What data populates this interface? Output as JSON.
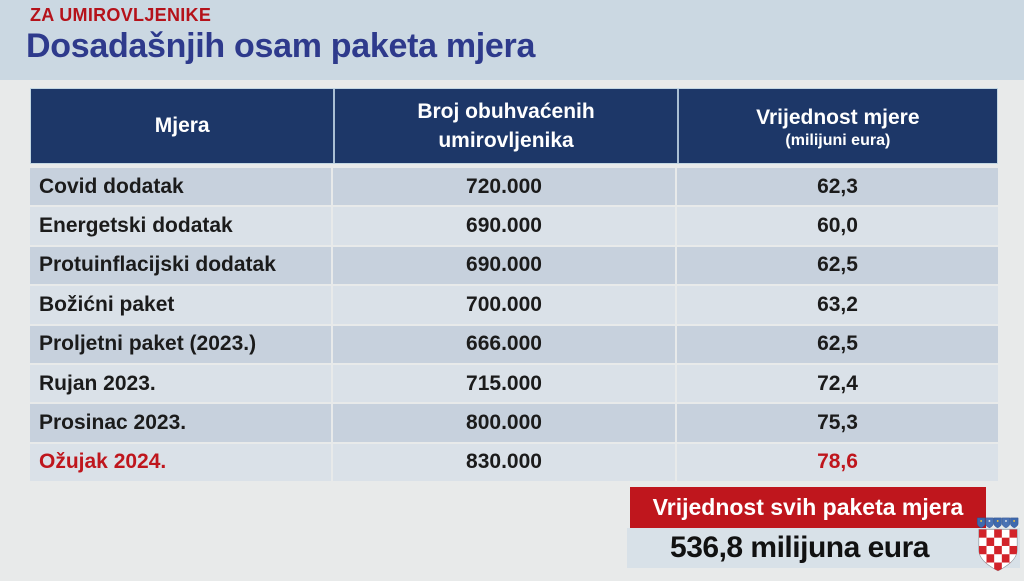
{
  "header": {
    "kicker": "ZA UMIROVLJENIKE",
    "title": "Dosadašnjih osam paketa mjera"
  },
  "table": {
    "header": {
      "mjera": "Mjera",
      "broj_line1": "Broj obuhvaćenih",
      "broj_line2": "umirovljenika",
      "vrijednost_line1": "Vrijednost mjere",
      "vrijednost_line2": "(milijuni eura)"
    },
    "rows": [
      {
        "mjera": "Covid dodatak",
        "broj": "720.000",
        "vrijednost": "62,3",
        "highlight": false
      },
      {
        "mjera": "Energetski dodatak",
        "broj": "690.000",
        "vrijednost": "60,0",
        "highlight": false
      },
      {
        "mjera": "Protuinflacijski dodatak",
        "broj": "690.000",
        "vrijednost": "62,5",
        "highlight": false
      },
      {
        "mjera": "Božićni paket",
        "broj": "700.000",
        "vrijednost": "63,2",
        "highlight": false
      },
      {
        "mjera": "Proljetni paket (2023.)",
        "broj": "666.000",
        "vrijednost": "62,5",
        "highlight": false
      },
      {
        "mjera": "Rujan 2023.",
        "broj": "715.000",
        "vrijednost": "72,4",
        "highlight": false
      },
      {
        "mjera": "Prosinac 2023.",
        "broj": "800.000",
        "vrijednost": "75,3",
        "highlight": false
      },
      {
        "mjera": "Ožujak 2024.",
        "broj": "830.000",
        "vrijednost": "78,6",
        "highlight": true
      }
    ]
  },
  "summary": {
    "banner_label": "Vrijednost svih paketa mjera",
    "total_value": "536,8 milijuna eura"
  },
  "icons": {
    "coat_of_arms": "croatia-coat-of-arms"
  },
  "colors": {
    "header_navy": "#1d3768",
    "row_dark": "#c7d1dd",
    "row_light": "#dae1e8",
    "accent_red": "#bf161d",
    "title_blue": "#2e3a8c",
    "top_band": "#cbd8e2",
    "page_bg": "#e8eaea",
    "total_bar_bg": "#d8e1e8"
  },
  "chart_data": {
    "type": "table",
    "kicker": "ZA UMIROVLJENIKE",
    "title": "Dosadašnjih osam paketa mjera",
    "columns": [
      "Mjera",
      "Broj obuhvaćenih umirovljenika",
      "Vrijednost mjere (milijuni eura)"
    ],
    "rows": [
      [
        "Covid dodatak",
        "720.000",
        "62,3"
      ],
      [
        "Energetski dodatak",
        "690.000",
        "60,0"
      ],
      [
        "Protuinflacijski dodatak",
        "690.000",
        "62,5"
      ],
      [
        "Božićni paket",
        "700.000",
        "63,2"
      ],
      [
        "Proljetni paket (2023.)",
        "666.000",
        "62,5"
      ],
      [
        "Rujan 2023.",
        "715.000",
        "72,4"
      ],
      [
        "Prosinac 2023.",
        "800.000",
        "75,3"
      ],
      [
        "Ožujak 2024.",
        "830.000",
        "78,6"
      ]
    ],
    "highlighted_row": "Ožujak 2024.",
    "total_label": "Vrijednost svih paketa mjera",
    "total_value": "536,8 milijuna eura"
  }
}
